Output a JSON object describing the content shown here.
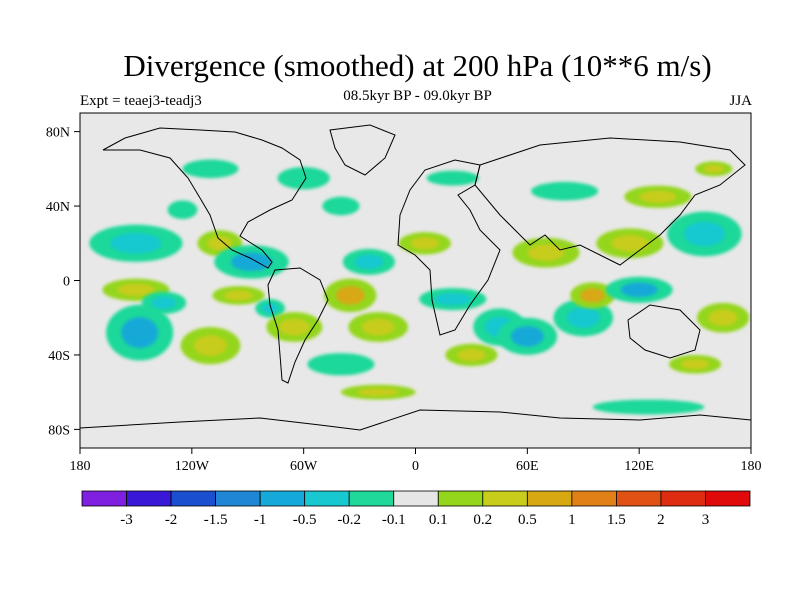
{
  "title": "Divergence (smoothed) at 200 hPa (10**6 m/s)",
  "subtitle": "08.5kyr BP - 09.0kyr BP",
  "experiment": "Expt = teaej3-teadj3",
  "season": "JJA",
  "colors": {
    "ocean_background": "#e8e8e8",
    "coastline": "#000000",
    "scale": [
      "#7f1fe0",
      "#3a18d8",
      "#1a4fd0",
      "#1f86d6",
      "#14a9d8",
      "#18c8d0",
      "#1fd89a",
      "#e6e6e6",
      "#94d61c",
      "#c8cc1a",
      "#d8a812",
      "#e08016",
      "#e05214",
      "#de2c10",
      "#e00a0a"
    ]
  },
  "colorbar": {
    "labels": [
      "-3",
      "-2",
      "-1.5",
      "-1",
      "-0.5",
      "-0.2",
      "-0.1",
      "0.1",
      "0.2",
      "0.5",
      "1",
      "1.5",
      "2",
      "3"
    ]
  },
  "axes": {
    "lat_labels": [
      "80N",
      "40N",
      "0",
      "40S",
      "80S"
    ],
    "lat_values": [
      80,
      40,
      0,
      -40,
      -80
    ],
    "lon_labels": [
      "180",
      "120W",
      "60W",
      "0",
      "60E",
      "120E",
      "180"
    ],
    "lon_values": [
      -180,
      -120,
      -60,
      0,
      60,
      120,
      180
    ],
    "lat_range": [
      -90,
      90
    ],
    "lon_range": [
      -180,
      180
    ]
  },
  "field": {
    "description_units": "10**6 m/s",
    "blobs": [
      {
        "lon": -150,
        "lat": 20,
        "rx": 25,
        "ry": 10,
        "level": -0.35
      },
      {
        "lon": -148,
        "lat": -28,
        "rx": 18,
        "ry": 15,
        "level": -0.7
      },
      {
        "lon": -150,
        "lat": -5,
        "rx": 18,
        "ry": 6,
        "level": 0.3
      },
      {
        "lon": -135,
        "lat": -12,
        "rx": 12,
        "ry": 6,
        "level": -0.35
      },
      {
        "lon": -125,
        "lat": 38,
        "rx": 8,
        "ry": 5,
        "level": -0.15
      },
      {
        "lon": -105,
        "lat": 20,
        "rx": 12,
        "ry": 7,
        "level": 0.35
      },
      {
        "lon": -110,
        "lat": -35,
        "rx": 16,
        "ry": 10,
        "level": 0.3
      },
      {
        "lon": -88,
        "lat": 10,
        "rx": 20,
        "ry": 9,
        "level": -0.6
      },
      {
        "lon": -95,
        "lat": -8,
        "rx": 14,
        "ry": 5,
        "level": 0.3
      },
      {
        "lon": -78,
        "lat": -15,
        "rx": 8,
        "ry": 5,
        "level": -0.35
      },
      {
        "lon": -65,
        "lat": -25,
        "rx": 15,
        "ry": 8,
        "level": 0.35
      },
      {
        "lon": -40,
        "lat": -45,
        "rx": 18,
        "ry": 6,
        "level": -0.15
      },
      {
        "lon": -35,
        "lat": -8,
        "rx": 14,
        "ry": 9,
        "level": 0.7
      },
      {
        "lon": -20,
        "lat": -25,
        "rx": 16,
        "ry": 8,
        "level": 0.3
      },
      {
        "lon": -25,
        "lat": 10,
        "rx": 14,
        "ry": 7,
        "level": -0.35
      },
      {
        "lon": -20,
        "lat": -60,
        "rx": 20,
        "ry": 4,
        "level": 0.3
      },
      {
        "lon": -60,
        "lat": 55,
        "rx": 14,
        "ry": 6,
        "level": -0.15
      },
      {
        "lon": -40,
        "lat": 40,
        "rx": 10,
        "ry": 5,
        "level": -0.15
      },
      {
        "lon": 5,
        "lat": 20,
        "rx": 14,
        "ry": 6,
        "level": 0.3
      },
      {
        "lon": 20,
        "lat": -10,
        "rx": 18,
        "ry": 6,
        "level": -0.35
      },
      {
        "lon": 30,
        "lat": -40,
        "rx": 14,
        "ry": 6,
        "level": 0.3
      },
      {
        "lon": 45,
        "lat": -25,
        "rx": 14,
        "ry": 10,
        "level": -0.35
      },
      {
        "lon": 60,
        "lat": -30,
        "rx": 16,
        "ry": 10,
        "level": -0.6
      },
      {
        "lon": 70,
        "lat": 15,
        "rx": 18,
        "ry": 8,
        "level": 0.35
      },
      {
        "lon": 90,
        "lat": -20,
        "rx": 16,
        "ry": 10,
        "level": -0.35
      },
      {
        "lon": 95,
        "lat": -8,
        "rx": 12,
        "ry": 7,
        "level": 0.9
      },
      {
        "lon": 120,
        "lat": -5,
        "rx": 18,
        "ry": 7,
        "level": -0.6
      },
      {
        "lon": 115,
        "lat": 20,
        "rx": 18,
        "ry": 8,
        "level": 0.35
      },
      {
        "lon": 155,
        "lat": 25,
        "rx": 20,
        "ry": 12,
        "level": -0.35
      },
      {
        "lon": 165,
        "lat": -20,
        "rx": 14,
        "ry": 8,
        "level": 0.35
      },
      {
        "lon": 150,
        "lat": -45,
        "rx": 14,
        "ry": 5,
        "level": 0.3
      },
      {
        "lon": 130,
        "lat": 45,
        "rx": 18,
        "ry": 6,
        "level": 0.3
      },
      {
        "lon": 80,
        "lat": 48,
        "rx": 18,
        "ry": 5,
        "level": -0.15
      },
      {
        "lon": 125,
        "lat": -68,
        "rx": 30,
        "ry": 4,
        "level": -0.15
      },
      {
        "lon": -110,
        "lat": 60,
        "rx": 15,
        "ry": 5,
        "level": -0.15
      },
      {
        "lon": 20,
        "lat": 55,
        "rx": 14,
        "ry": 4,
        "level": -0.15
      },
      {
        "lon": 160,
        "lat": 60,
        "rx": 10,
        "ry": 4,
        "level": 0.3
      }
    ]
  }
}
